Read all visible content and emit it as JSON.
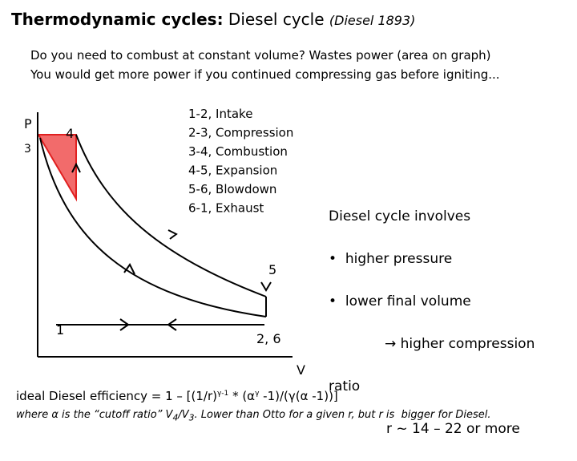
{
  "header": {
    "title_bold": "Thermodynamic cycles:",
    "title_normal": "Diesel cycle",
    "title_note": "(Diesel 1893)"
  },
  "intro": [
    "Do you need to combust at constant volume? Wastes power (area on graph)",
    "You would get more power if you continued compressing gas before igniting..."
  ],
  "diagram": {
    "y_axis": "P",
    "x_axis": "V",
    "points": {
      "p1": "1",
      "p26": "2, 6",
      "p3": "3",
      "p4": "4",
      "p5": "5"
    },
    "legend": [
      "1-2, Intake",
      "2-3, Compression",
      "3-4, Combustion",
      "4-5, Expansion",
      "5-6, Blowdown",
      "6-1, Exhaust"
    ]
  },
  "notes": {
    "heading": "Diesel cycle involves",
    "bullets": [
      "higher pressure",
      "lower final volume"
    ],
    "arrow_line": "higher compression",
    "ratio": "ratio",
    "range": "r ~ 14 – 22 or more"
  },
  "formula": {
    "part1": "ideal Diesel efficiency = 1 – [(1/r)",
    "sup1": "γ-1",
    "part2": " * (α",
    "sup2": "γ",
    "part3": " -1)/(γ(α -1))]"
  },
  "footer": {
    "part1": "where α is the “cutoff ratio” V",
    "sub1": "4",
    "part2": "/V",
    "sub2": "3",
    "part3": ". Lower than Otto for a given r, but r is  bigger for Diesel."
  }
}
